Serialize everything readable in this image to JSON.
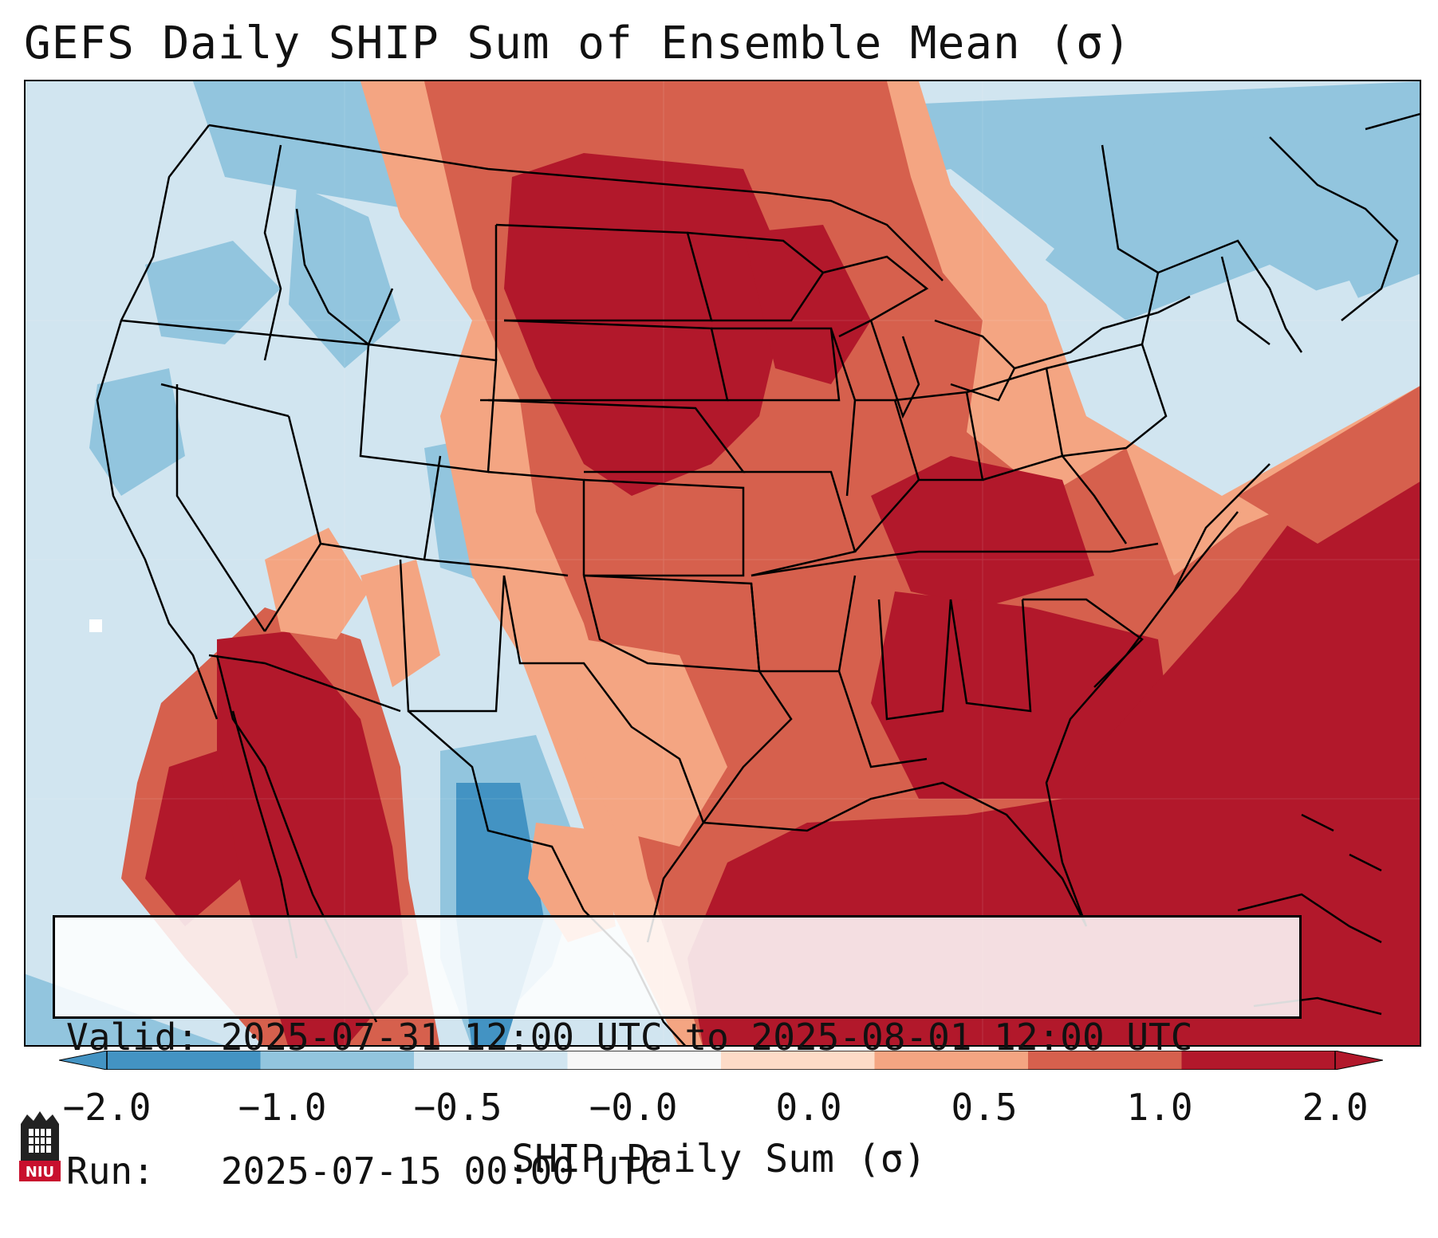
{
  "title": "GEFS Daily SHIP Sum of Ensemble Mean (σ)",
  "info": {
    "valid_line": "Valid: 2025-07-31 12:00 UTC to 2025-08-01 12:00 UTC",
    "run_line": "Run:   2025-07-15 00:00 UTC"
  },
  "colorbar": {
    "label": "SHIP Daily Sum (σ)",
    "ticks": [
      "−2.0",
      "−1.0",
      "−0.5",
      "−0.0",
      "0.0",
      "0.5",
      "1.0",
      "2.0"
    ],
    "colors": [
      "#4393c3",
      "#92c5de",
      "#d1e5f0",
      "#f7f7f7",
      "#fddbc7",
      "#f4a582",
      "#d6604d",
      "#b2182b"
    ],
    "extend": "both"
  },
  "logo": {
    "text": "NIU"
  },
  "map_colors": {
    "ocean_west": "#d1e5f0",
    "strong_positive": "#b2182b",
    "positive": "#d6604d",
    "weak_positive": "#f4a582",
    "slight_positive": "#fddbc7",
    "slight_negative": "#d1e5f0",
    "negative": "#92c5de",
    "strong_negative": "#4393c3",
    "border": "#000000"
  }
}
